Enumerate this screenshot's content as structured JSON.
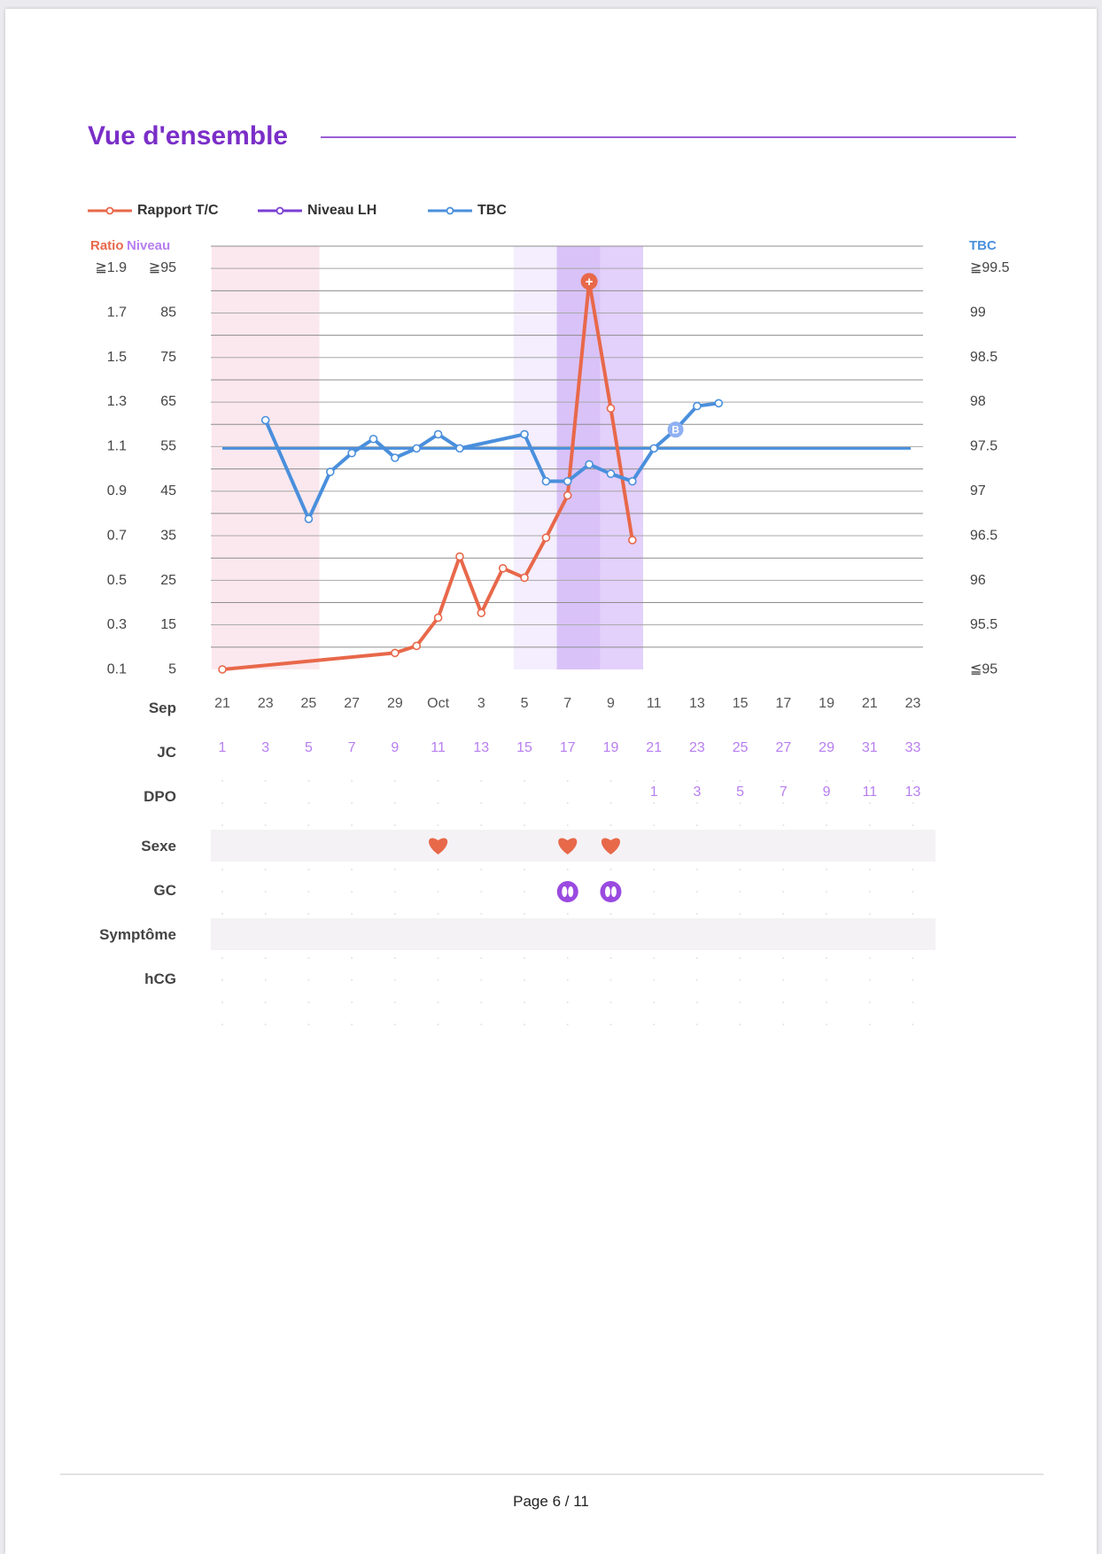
{
  "section_title": "Vue d'ensemble",
  "footer": {
    "page_label": "Page 6 / 11"
  },
  "legend": [
    {
      "label": "Rapport T/C",
      "color": "#e8684a"
    },
    {
      "label": "Niveau LH",
      "color": "#7b3fd4"
    },
    {
      "label": "TBC",
      "color": "#4a8fdc"
    }
  ],
  "colors": {
    "ratio": "#e8684a",
    "level": "#b77ef0",
    "tbc": "#4a8fdc",
    "period_band": "#fbe8ee",
    "fertile_band": "#f4eefe",
    "peak_band": "#e3d0fb",
    "peak_core": "#d9c2f8",
    "row_band": "#f4f2f5",
    "cycle_day": "#b77ef0"
  },
  "chart_data": {
    "type": "line",
    "axis_headers": {
      "ratio": "Ratio",
      "level": "Niveau",
      "tbc": "TBC"
    },
    "ratio_ticks": [
      "≧1.9",
      "1.7",
      "1.5",
      "1.3",
      "1.1",
      "0.9",
      "0.7",
      "0.5",
      "0.3",
      "0.1"
    ],
    "level_ticks": [
      "≧95",
      "85",
      "75",
      "65",
      "55",
      "45",
      "35",
      "25",
      "15",
      "5"
    ],
    "tbc_ticks": [
      "≧99.5",
      "99",
      "98.5",
      "98",
      "97.5",
      "97",
      "96.5",
      "96",
      "95.5",
      "≦95"
    ],
    "ratio_range": [
      0.1,
      1.9
    ],
    "tbc_range": [
      95,
      99.5
    ],
    "tbc_coverline": 97.35,
    "date_row_label": "Sep",
    "dates": [
      "21",
      "23",
      "25",
      "27",
      "29",
      "Oct",
      "3",
      "5",
      "7",
      "9",
      "11",
      "13",
      "15",
      "17",
      "19",
      "21",
      "23"
    ],
    "cd_row_label": "JC",
    "cycle_days": [
      "1",
      "3",
      "5",
      "7",
      "9",
      "11",
      "13",
      "15",
      "17",
      "19",
      "21",
      "23",
      "25",
      "27",
      "29",
      "31",
      "33"
    ],
    "dpo_row_label": "DPO",
    "dpo": [
      {
        "cycle_day": 21,
        "label": "1"
      },
      {
        "cycle_day": 23,
        "label": "3"
      },
      {
        "cycle_day": 25,
        "label": "5"
      },
      {
        "cycle_day": 27,
        "label": "7"
      },
      {
        "cycle_day": 29,
        "label": "9"
      },
      {
        "cycle_day": 31,
        "label": "11"
      },
      {
        "cycle_day": 33,
        "label": "13"
      }
    ],
    "series": [
      {
        "name": "Rapport T/C",
        "axis": "ratio",
        "points": [
          {
            "cycle_day": 1,
            "value": 0.1
          },
          {
            "cycle_day": 9,
            "value": 0.17
          },
          {
            "cycle_day": 10,
            "value": 0.2
          },
          {
            "cycle_day": 11,
            "value": 0.32
          },
          {
            "cycle_day": 12,
            "value": 0.58
          },
          {
            "cycle_day": 13,
            "value": 0.34
          },
          {
            "cycle_day": 14,
            "value": 0.53
          },
          {
            "cycle_day": 15,
            "value": 0.49
          },
          {
            "cycle_day": 16,
            "value": 0.66
          },
          {
            "cycle_day": 17,
            "value": 0.84
          },
          {
            "cycle_day": 18,
            "value": 1.75
          },
          {
            "cycle_day": 19,
            "value": 1.21
          },
          {
            "cycle_day": 20,
            "value": 0.65
          }
        ],
        "peak_cycle_day": 18
      },
      {
        "name": "TBC",
        "axis": "tbc",
        "points": [
          {
            "cycle_day": 3,
            "value": 97.65
          },
          {
            "cycle_day": 5,
            "value": 96.6
          },
          {
            "cycle_day": 6,
            "value": 97.1
          },
          {
            "cycle_day": 7,
            "value": 97.3
          },
          {
            "cycle_day": 8,
            "value": 97.45
          },
          {
            "cycle_day": 9,
            "value": 97.25
          },
          {
            "cycle_day": 10,
            "value": 97.35
          },
          {
            "cycle_day": 11,
            "value": 97.5
          },
          {
            "cycle_day": 12,
            "value": 97.35
          },
          {
            "cycle_day": 15,
            "value": 97.5
          },
          {
            "cycle_day": 16,
            "value": 97.0
          },
          {
            "cycle_day": 17,
            "value": 97.0
          },
          {
            "cycle_day": 18,
            "value": 97.18
          },
          {
            "cycle_day": 19,
            "value": 97.08
          },
          {
            "cycle_day": 20,
            "value": 97.0
          },
          {
            "cycle_day": 21,
            "value": 97.35
          },
          {
            "cycle_day": 22,
            "value": 97.55
          },
          {
            "cycle_day": 23,
            "value": 97.8
          },
          {
            "cycle_day": 24,
            "value": 97.83
          }
        ],
        "marker": {
          "cycle_day": 22,
          "label": "B"
        }
      }
    ],
    "bands": [
      {
        "kind": "period",
        "from_cycle_day": 1,
        "to_cycle_day": 6
      },
      {
        "kind": "fertile",
        "from_cycle_day": 15,
        "to_cycle_day": 21
      },
      {
        "kind": "peak",
        "from_cycle_day": 17,
        "to_cycle_day": 21
      }
    ],
    "rows": [
      {
        "label": "Sexe",
        "icon": "heart-icon",
        "cycle_days": [
          11,
          17,
          19
        ]
      },
      {
        "label": "GC",
        "icon": "cervical-mucus-icon",
        "cycle_days": [
          17,
          19
        ]
      },
      {
        "label": "Symptôme",
        "icon": "",
        "cycle_days": []
      },
      {
        "label": "hCG",
        "icon": "",
        "cycle_days": []
      }
    ],
    "grid": true,
    "legend_position": "top-left"
  }
}
